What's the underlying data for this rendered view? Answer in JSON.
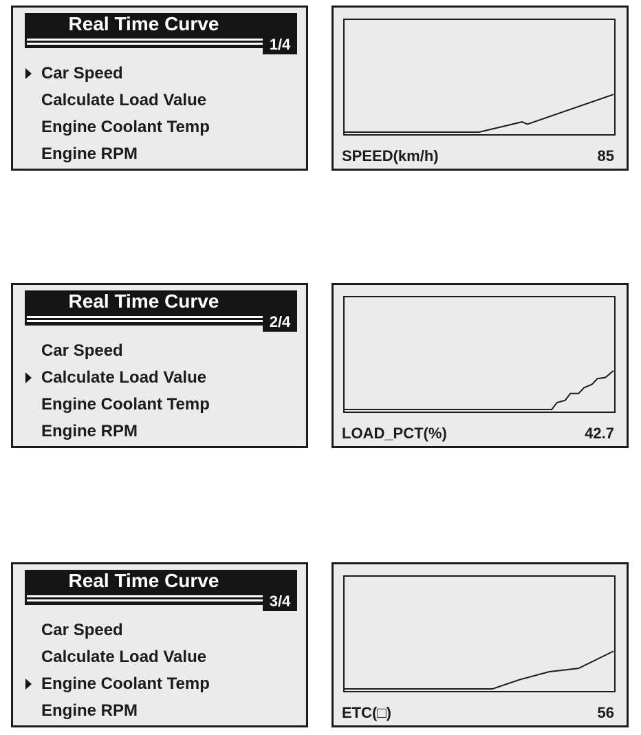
{
  "screens": [
    {
      "menu": {
        "title": "Real Time Curve",
        "page": "1/4",
        "selected": 0,
        "items": [
          "Car Speed",
          "Calculate Load Value",
          "Engine Coolant Temp",
          "Engine RPM"
        ]
      },
      "graph": {
        "label": "SPEED(km/h)",
        "value": "85",
        "curve": [
          [
            0,
            0
          ],
          [
            0.5,
            0
          ],
          [
            0.66,
            0.09
          ],
          [
            0.68,
            0.07
          ],
          [
            1,
            0.33
          ]
        ]
      }
    },
    {
      "menu": {
        "title": "Real Time Curve",
        "page": "2/4",
        "selected": 1,
        "items": [
          "Car Speed",
          "Calculate Load Value",
          "Engine Coolant Temp",
          "Engine RPM"
        ]
      },
      "graph": {
        "label": "LOAD_PCT(%)",
        "value": "42.7",
        "curve": [
          [
            0,
            0
          ],
          [
            0.77,
            0
          ],
          [
            0.79,
            0.06
          ],
          [
            0.82,
            0.08
          ],
          [
            0.84,
            0.14
          ],
          [
            0.87,
            0.14
          ],
          [
            0.89,
            0.19
          ],
          [
            0.92,
            0.22
          ],
          [
            0.94,
            0.27
          ],
          [
            0.97,
            0.28
          ],
          [
            1,
            0.34
          ]
        ]
      }
    },
    {
      "menu": {
        "title": "Real Time Curve",
        "page": "3/4",
        "selected": 2,
        "items": [
          "Car Speed",
          "Calculate Load Value",
          "Engine Coolant Temp",
          "Engine RPM"
        ]
      },
      "graph": {
        "label": "ETC(□)",
        "value": "56",
        "curve": [
          [
            0,
            0
          ],
          [
            0.55,
            0
          ],
          [
            0.65,
            0.08
          ],
          [
            0.76,
            0.15
          ],
          [
            0.87,
            0.18
          ],
          [
            1,
            0.33
          ]
        ]
      }
    }
  ]
}
